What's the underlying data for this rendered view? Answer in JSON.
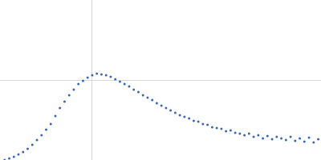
{
  "chart_data": {
    "type": "scatter",
    "color": "#3a66b5",
    "marker": "circle",
    "grid": true,
    "tick_labels": false,
    "xlim": [
      0,
      3.48
    ],
    "xticks": [
      1
    ],
    "ylim": [
      0,
      2
    ],
    "yticks": [
      1
    ],
    "x": [
      0.05,
      0.1,
      0.15,
      0.2,
      0.25,
      0.3,
      0.35,
      0.4,
      0.45,
      0.5,
      0.55,
      0.6,
      0.65,
      0.7,
      0.75,
      0.8,
      0.85,
      0.9,
      0.95,
      1.0,
      1.05,
      1.1,
      1.15,
      1.2,
      1.25,
      1.3,
      1.35,
      1.4,
      1.45,
      1.5,
      1.55,
      1.6,
      1.65,
      1.7,
      1.75,
      1.8,
      1.85,
      1.9,
      1.95,
      2.0,
      2.05,
      2.1,
      2.15,
      2.2,
      2.25,
      2.3,
      2.35,
      2.4,
      2.45,
      2.5,
      2.55,
      2.6,
      2.65,
      2.7,
      2.75,
      2.8,
      2.85,
      2.9,
      2.95,
      3.0,
      3.05,
      3.1,
      3.15,
      3.2,
      3.25,
      3.3,
      3.35,
      3.4,
      3.45
    ],
    "values": [
      0.0,
      0.02,
      0.04,
      0.07,
      0.1,
      0.14,
      0.19,
      0.25,
      0.31,
      0.38,
      0.45,
      0.55,
      0.65,
      0.73,
      0.81,
      0.88,
      0.95,
      0.99,
      1.03,
      1.06,
      1.08,
      1.07,
      1.06,
      1.04,
      1.01,
      0.98,
      0.95,
      0.92,
      0.88,
      0.85,
      0.81,
      0.78,
      0.75,
      0.71,
      0.68,
      0.65,
      0.62,
      0.59,
      0.56,
      0.54,
      0.52,
      0.49,
      0.48,
      0.45,
      0.44,
      0.41,
      0.4,
      0.39,
      0.36,
      0.37,
      0.34,
      0.33,
      0.31,
      0.33,
      0.29,
      0.31,
      0.27,
      0.3,
      0.26,
      0.29,
      0.27,
      0.25,
      0.29,
      0.24,
      0.27,
      0.23,
      0.28,
      0.22,
      0.26
    ]
  }
}
